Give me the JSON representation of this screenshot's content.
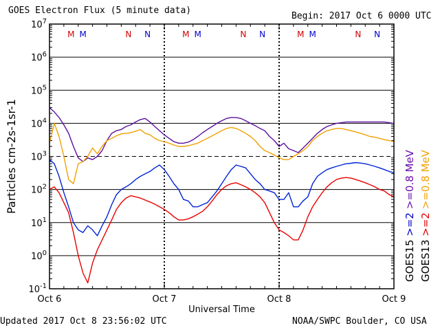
{
  "header": {
    "title": "GOES Electron Flux (5 minute data)",
    "begin": "Begin: 2017 Oct 6 0000 UTC"
  },
  "footer": {
    "updated": "Updated 2017 Oct  8 23:56:02 UTC",
    "credit": "NOAA/SWPC Boulder, CO USA"
  },
  "chart_data": {
    "type": "line",
    "xlabel": "Universal Time",
    "ylabel": "Particles cm-2s-1sr-1",
    "x_ticks": [
      "Oct 6",
      "Oct 7",
      "Oct 8",
      "Oct 9"
    ],
    "xlim_hours": [
      0,
      72
    ],
    "ylim": [
      0.1,
      10000000
    ],
    "y_scale": "log",
    "y_ticks": [
      "10^7",
      "10^6",
      "10^5",
      "10^4",
      "10^3",
      "10^2",
      "10^1",
      "10^0",
      "10^-1"
    ],
    "grid": true,
    "reference_line": 1000,
    "markers": [
      {
        "label": "M",
        "hour": 4.5,
        "color": "#d00000"
      },
      {
        "label": "M",
        "hour": 7.0,
        "color": "#0000d0"
      },
      {
        "label": "N",
        "hour": 16.5,
        "color": "#d00000"
      },
      {
        "label": "N",
        "hour": 20.5,
        "color": "#0000d0"
      },
      {
        "label": "M",
        "hour": 28.5,
        "color": "#d00000"
      },
      {
        "label": "M",
        "hour": 31.0,
        "color": "#0000d0"
      },
      {
        "label": "N",
        "hour": 40.5,
        "color": "#d00000"
      },
      {
        "label": "N",
        "hour": 44.5,
        "color": "#0000d0"
      },
      {
        "label": "M",
        "hour": 52.5,
        "color": "#d00000"
      },
      {
        "label": "M",
        "hour": 55.0,
        "color": "#0000d0"
      },
      {
        "label": "N",
        "hour": 64.5,
        "color": "#d00000"
      },
      {
        "label": "N",
        "hour": 68.5,
        "color": "#0000d0"
      }
    ],
    "legend": [
      {
        "label": "GOES15",
        "color": "#000000"
      },
      {
        "label": ">=2",
        "color": "#0000d0"
      },
      {
        "label": ">=0.8 MeV",
        "color": "#6a0dad"
      },
      {
        "label": "GOES13",
        "color": "#000000"
      },
      {
        "label": ">=2",
        "color": "#e00000"
      },
      {
        "label": ">=0.8 MeV",
        "color": "#f0a000"
      }
    ],
    "series": [
      {
        "name": "GOES15 >=0.8 MeV",
        "color": "#5b0f9e",
        "x": [
          0,
          1,
          2,
          3,
          4,
          5,
          6,
          7,
          8,
          9,
          10,
          11,
          12,
          13,
          14,
          15,
          16,
          17,
          18,
          19,
          20,
          21,
          22,
          23,
          24,
          25,
          26,
          27,
          28,
          29,
          30,
          31,
          32,
          33,
          34,
          35,
          36,
          37,
          38,
          39,
          40,
          41,
          42,
          43,
          44,
          45,
          46,
          47,
          48,
          49,
          50,
          51,
          52,
          53,
          54,
          55,
          56,
          57,
          58,
          59,
          60,
          61,
          62,
          63,
          64,
          65,
          66,
          67,
          68,
          69,
          70,
          71,
          72
        ],
        "values": [
          30000,
          22000,
          15000,
          9000,
          5000,
          2000,
          900,
          700,
          900,
          800,
          1000,
          1500,
          3000,
          5000,
          6000,
          6500,
          8000,
          9000,
          11000,
          13000,
          14000,
          11000,
          8000,
          6000,
          4500,
          3500,
          2800,
          2500,
          2500,
          2700,
          3200,
          4000,
          5200,
          6500,
          8000,
          10000,
          12000,
          14000,
          15000,
          15000,
          14000,
          12000,
          10000,
          8500,
          7000,
          6000,
          4000,
          3000,
          2000,
          2500,
          1700,
          1500,
          1300,
          1800,
          2500,
          3500,
          5000,
          6500,
          8000,
          9000,
          10000,
          10500,
          11000,
          11000,
          11000,
          11000,
          11000,
          11000,
          11000,
          11000,
          11000,
          10500,
          10000
        ]
      },
      {
        "name": "GOES13 >=0.8 MeV",
        "color": "#f0a000",
        "x": [
          0,
          1,
          2,
          3,
          4,
          5,
          6,
          7,
          8,
          9,
          10,
          11,
          12,
          13,
          14,
          15,
          16,
          17,
          18,
          19,
          20,
          21,
          22,
          23,
          24,
          25,
          26,
          27,
          28,
          29,
          30,
          31,
          32,
          33,
          34,
          35,
          36,
          37,
          38,
          39,
          40,
          41,
          42,
          43,
          44,
          45,
          46,
          47,
          48,
          49,
          50,
          51,
          52,
          53,
          54,
          55,
          56,
          57,
          58,
          59,
          60,
          61,
          62,
          63,
          64,
          65,
          66,
          67,
          68,
          69,
          70,
          71,
          72
        ],
        "values": [
          2500,
          10000,
          4000,
          1000,
          200,
          150,
          600,
          700,
          1000,
          1800,
          1200,
          2000,
          3000,
          3500,
          4200,
          4800,
          5000,
          5200,
          5800,
          6500,
          5000,
          4500,
          3500,
          3000,
          2800,
          2500,
          2200,
          2000,
          2000,
          2100,
          2300,
          2500,
          3000,
          3500,
          4200,
          5000,
          6000,
          7000,
          7500,
          7000,
          6000,
          5000,
          4000,
          3000,
          2000,
          1500,
          1300,
          1100,
          900,
          800,
          800,
          1000,
          1200,
          1500,
          2000,
          3000,
          4000,
          5000,
          6000,
          6500,
          7000,
          7000,
          6500,
          6000,
          5500,
          5000,
          4500,
          4000,
          3800,
          3500,
          3200,
          3000,
          2800
        ]
      },
      {
        "name": "GOES15 >=2 MeV",
        "color": "#0022d8",
        "x": [
          0,
          1,
          2,
          3,
          4,
          5,
          6,
          7,
          8,
          9,
          10,
          11,
          12,
          13,
          14,
          15,
          16,
          17,
          18,
          19,
          20,
          21,
          22,
          23,
          24,
          25,
          26,
          27,
          28,
          29,
          30,
          31,
          32,
          33,
          34,
          35,
          36,
          37,
          38,
          39,
          40,
          41,
          42,
          43,
          44,
          45,
          46,
          47,
          48,
          49,
          50,
          51,
          52,
          53,
          54,
          55,
          56,
          57,
          58,
          59,
          60,
          61,
          62,
          63,
          64,
          65,
          66,
          67,
          68,
          69,
          70,
          71,
          72
        ],
        "values": [
          800,
          600,
          250,
          80,
          30,
          10,
          6,
          5,
          8,
          6,
          4,
          8,
          15,
          35,
          70,
          100,
          120,
          150,
          200,
          250,
          300,
          350,
          450,
          550,
          400,
          250,
          150,
          100,
          50,
          45,
          30,
          30,
          35,
          40,
          60,
          90,
          150,
          250,
          400,
          550,
          500,
          450,
          300,
          200,
          150,
          100,
          90,
          80,
          50,
          50,
          80,
          30,
          30,
          45,
          60,
          150,
          250,
          320,
          400,
          450,
          500,
          550,
          600,
          620,
          650,
          630,
          600,
          550,
          500,
          450,
          400,
          350,
          320
        ]
      },
      {
        "name": "GOES13 >=2 MeV",
        "color": "#e80000",
        "x": [
          0,
          1,
          2,
          3,
          4,
          5,
          6,
          7,
          8,
          9,
          10,
          11,
          12,
          13,
          14,
          15,
          16,
          17,
          18,
          19,
          20,
          21,
          22,
          23,
          24,
          25,
          26,
          27,
          28,
          29,
          30,
          31,
          32,
          33,
          34,
          35,
          36,
          37,
          38,
          39,
          40,
          41,
          42,
          43,
          44,
          45,
          46,
          47,
          48,
          49,
          50,
          51,
          52,
          53,
          54,
          55,
          56,
          57,
          58,
          59,
          60,
          61,
          62,
          63,
          64,
          65,
          66,
          67,
          68,
          69,
          70,
          71,
          72
        ],
        "values": [
          100,
          120,
          80,
          40,
          20,
          5,
          1,
          0.3,
          0.15,
          0.6,
          1.5,
          3,
          6,
          12,
          25,
          40,
          55,
          65,
          60,
          55,
          48,
          42,
          36,
          30,
          25,
          20,
          15,
          12,
          12,
          13,
          15,
          18,
          22,
          30,
          45,
          70,
          100,
          130,
          150,
          160,
          140,
          120,
          100,
          80,
          60,
          40,
          20,
          10,
          6,
          5,
          4,
          3,
          3,
          6,
          15,
          30,
          50,
          80,
          120,
          160,
          200,
          220,
          230,
          220,
          200,
          180,
          160,
          140,
          120,
          100,
          90,
          70,
          60
        ]
      }
    ]
  }
}
